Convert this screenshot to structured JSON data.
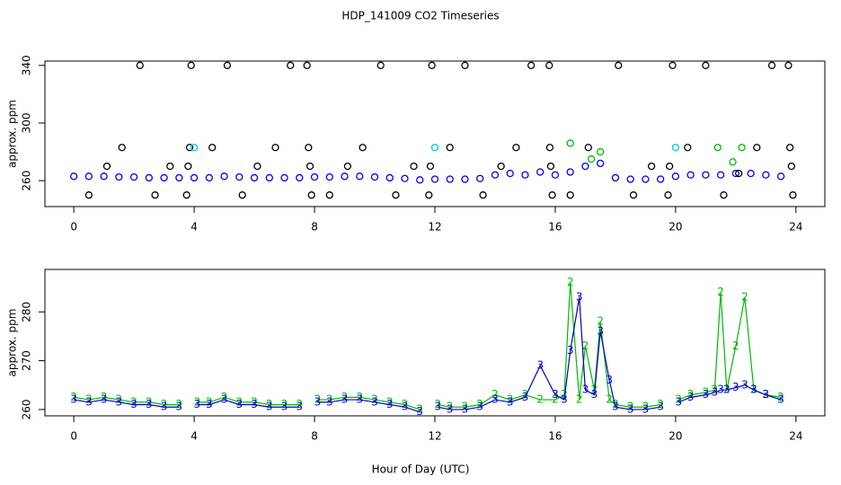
{
  "chart_data": [
    {
      "type": "scatter",
      "title": "HDP_141009  CO2 Timeseries",
      "ylabel": "approx. ppm",
      "xlim": [
        -0.96,
        24.96
      ],
      "xticks": [
        0,
        4,
        8,
        12,
        16,
        20,
        24
      ],
      "ylim": [
        242,
        343
      ],
      "yticks": [
        260,
        300,
        340
      ],
      "series": [
        {
          "color": "#0000ff",
          "x": [
            0,
            0.5,
            1,
            1.5,
            2,
            2.5,
            3,
            3.5,
            4,
            4.5,
            5,
            5.5,
            6,
            6.5,
            7,
            7.5,
            8,
            8.5,
            9,
            9.5,
            10,
            10.5,
            11,
            11.5,
            12,
            12.5,
            13,
            13.5,
            14,
            14.5,
            15,
            15.5,
            16,
            16.5,
            17,
            17.5,
            18,
            18.5,
            19,
            19.5,
            20,
            20.5,
            21,
            21.5,
            22,
            22.5,
            23,
            23.5
          ],
          "values": [
            263,
            263,
            263,
            262.5,
            262.5,
            262,
            262,
            262,
            262,
            262,
            263,
            262.5,
            262,
            262,
            262,
            262,
            262.5,
            262.5,
            263,
            263,
            262.5,
            262,
            261.5,
            260.5,
            261,
            261,
            261,
            261.5,
            264,
            265,
            264,
            266,
            264,
            266,
            270,
            272,
            262,
            261,
            261,
            261,
            263,
            264,
            264,
            264,
            265,
            265,
            264,
            263
          ]
        },
        {
          "color": "#000000",
          "x": [
            0.5,
            1.1,
            1.6,
            2.2,
            2.7,
            3.2,
            3.75,
            3.8,
            3.85,
            3.9,
            4.6,
            5.1,
            5.6,
            6.1,
            6.7,
            7.2,
            7.75,
            7.8,
            7.85,
            7.9,
            8.5,
            9.1,
            9.6,
            10.2,
            10.7,
            11.3,
            11.8,
            11.85,
            11.9,
            12.5,
            13,
            13.6,
            14.2,
            14.7,
            15.2,
            15.8,
            15.82,
            15.85,
            15.9,
            16.5,
            17.1,
            18.1,
            18.6,
            19.2,
            19.75,
            19.8,
            19.9,
            20.4,
            21,
            21.6,
            22.1,
            22.7,
            23.2,
            23.75,
            23.8,
            23.85,
            23.9
          ],
          "values": [
            250,
            270,
            283,
            340,
            250,
            270,
            250,
            270,
            283,
            340,
            283,
            340,
            250,
            270,
            283,
            340,
            340,
            283,
            270,
            250,
            250,
            270,
            283,
            340,
            250,
            270,
            250,
            270,
            340,
            283,
            340,
            250,
            270,
            283,
            340,
            340,
            283,
            270,
            250,
            250,
            283,
            340,
            250,
            270,
            250,
            270,
            340,
            283,
            340,
            250,
            265,
            283,
            340,
            340,
            283,
            270,
            250
          ]
        },
        {
          "color": "#00cccc",
          "x": [
            4,
            12,
            20
          ],
          "values": [
            283,
            283,
            283
          ]
        },
        {
          "color": "#00bb00",
          "x": [
            16.5,
            17.2,
            17.5,
            21.4,
            21.9,
            22.2
          ],
          "values": [
            286,
            275,
            280,
            283,
            273,
            283
          ]
        }
      ]
    },
    {
      "type": "line",
      "ylabel": "approx. ppm",
      "xlabel": "Hour of Day (UTC)",
      "xlim": [
        -0.96,
        24.96
      ],
      "xticks": [
        0,
        4,
        8,
        12,
        16,
        20,
        24
      ],
      "ylim": [
        258.7,
        288.7
      ],
      "yticks": [
        260,
        270,
        280
      ],
      "series": [
        {
          "symbol": "2",
          "color": "#00bb00",
          "x": [
            0,
            0.5,
            1,
            1.5,
            2,
            2.5,
            3,
            3.5,
            3.9,
            4.1,
            4.5,
            5,
            5.5,
            6,
            6.5,
            7,
            7.5,
            7.9,
            8.1,
            8.5,
            9,
            9.5,
            10,
            10.5,
            11,
            11.5,
            11.9,
            12.1,
            12.5,
            13,
            13.5,
            14,
            14.5,
            15,
            15.5,
            16,
            16.3,
            16.5,
            16.8,
            17,
            17.3,
            17.5,
            17.8,
            18,
            18.5,
            19,
            19.5,
            19.9,
            20.1,
            20.5,
            21,
            21.3,
            21.5,
            21.7,
            22,
            22.3,
            22.6,
            23,
            23.5
          ],
          "values": [
            262.5,
            262,
            262.5,
            262,
            261.5,
            261.5,
            261,
            261,
            null,
            261.5,
            261.5,
            262.5,
            261.5,
            261.5,
            261,
            261,
            261,
            null,
            262,
            262,
            262.5,
            262.5,
            262,
            261.5,
            261,
            260,
            null,
            261,
            260.5,
            260.5,
            261,
            263,
            262,
            263,
            262,
            262,
            263,
            286,
            262,
            273,
            264,
            278,
            262,
            261,
            260.5,
            260.5,
            261,
            null,
            262,
            263,
            263.5,
            264,
            284,
            264,
            273,
            283,
            264,
            263,
            262.5
          ]
        },
        {
          "symbol": "3",
          "color": "#0000cc",
          "x": [
            0,
            0.5,
            1,
            1.5,
            2,
            2.5,
            3,
            3.5,
            3.9,
            4.1,
            4.5,
            5,
            5.5,
            6,
            6.5,
            7,
            7.5,
            7.9,
            8.1,
            8.5,
            9,
            9.5,
            10,
            10.5,
            11,
            11.5,
            11.9,
            12.1,
            12.5,
            13,
            13.5,
            14,
            14.5,
            15,
            15.5,
            16,
            16.3,
            16.5,
            16.8,
            17,
            17.3,
            17.5,
            17.8,
            18,
            18.5,
            19,
            19.5,
            19.9,
            20.1,
            20.5,
            21,
            21.3,
            21.5,
            21.7,
            22,
            22.3,
            22.6,
            23,
            23.5
          ],
          "values": [
            262,
            261.5,
            262,
            261.5,
            261,
            261,
            260.5,
            260.5,
            null,
            261,
            261,
            262,
            261,
            261,
            260.5,
            260.5,
            260.5,
            null,
            261.5,
            261.5,
            262,
            262,
            261.5,
            261,
            260.5,
            259.5,
            null,
            260.5,
            260,
            260,
            260.5,
            262,
            261.5,
            262.5,
            269,
            263,
            262,
            272,
            283,
            264,
            263,
            276,
            266,
            260.5,
            260,
            260,
            260.5,
            null,
            261.5,
            262.5,
            263,
            263.5,
            264,
            264,
            264.5,
            265,
            264,
            263,
            262
          ]
        }
      ]
    }
  ]
}
